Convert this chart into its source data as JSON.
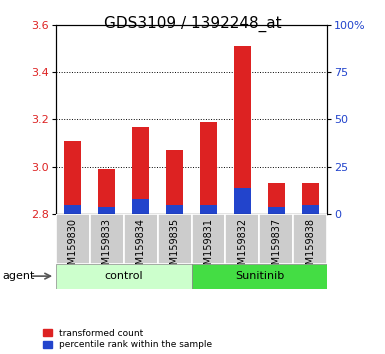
{
  "title": "GDS3109 / 1392248_at",
  "samples": [
    "GSM159830",
    "GSM159833",
    "GSM159834",
    "GSM159835",
    "GSM159831",
    "GSM159832",
    "GSM159837",
    "GSM159838"
  ],
  "transformed_count": [
    3.11,
    2.99,
    3.17,
    3.07,
    3.19,
    3.51,
    2.93,
    2.93
  ],
  "percentile_rank_pct": [
    5.0,
    4.0,
    8.0,
    5.0,
    5.0,
    14.0,
    4.0,
    5.0
  ],
  "bar_bottom": 2.8,
  "ylim_left": [
    2.8,
    3.6
  ],
  "ylim_right": [
    0,
    100
  ],
  "yticks_left": [
    2.8,
    3.0,
    3.2,
    3.4,
    3.6
  ],
  "yticks_right": [
    0,
    25,
    50,
    75,
    100
  ],
  "ytick_labels_right": [
    "0",
    "25",
    "50",
    "75",
    "100%"
  ],
  "red_color": "#dd2222",
  "blue_color": "#2244cc",
  "control_label": "control",
  "sunitinib_label": "Sunitinib",
  "agent_label": "agent",
  "legend_red": "transformed count",
  "legend_blue": "percentile rank within the sample",
  "control_bg": "#ccffcc",
  "sunitinib_bg": "#44dd44",
  "xticklabel_bg": "#cccccc",
  "bar_width": 0.5,
  "title_fontsize": 11,
  "tick_fontsize": 8,
  "label_fontsize": 7
}
